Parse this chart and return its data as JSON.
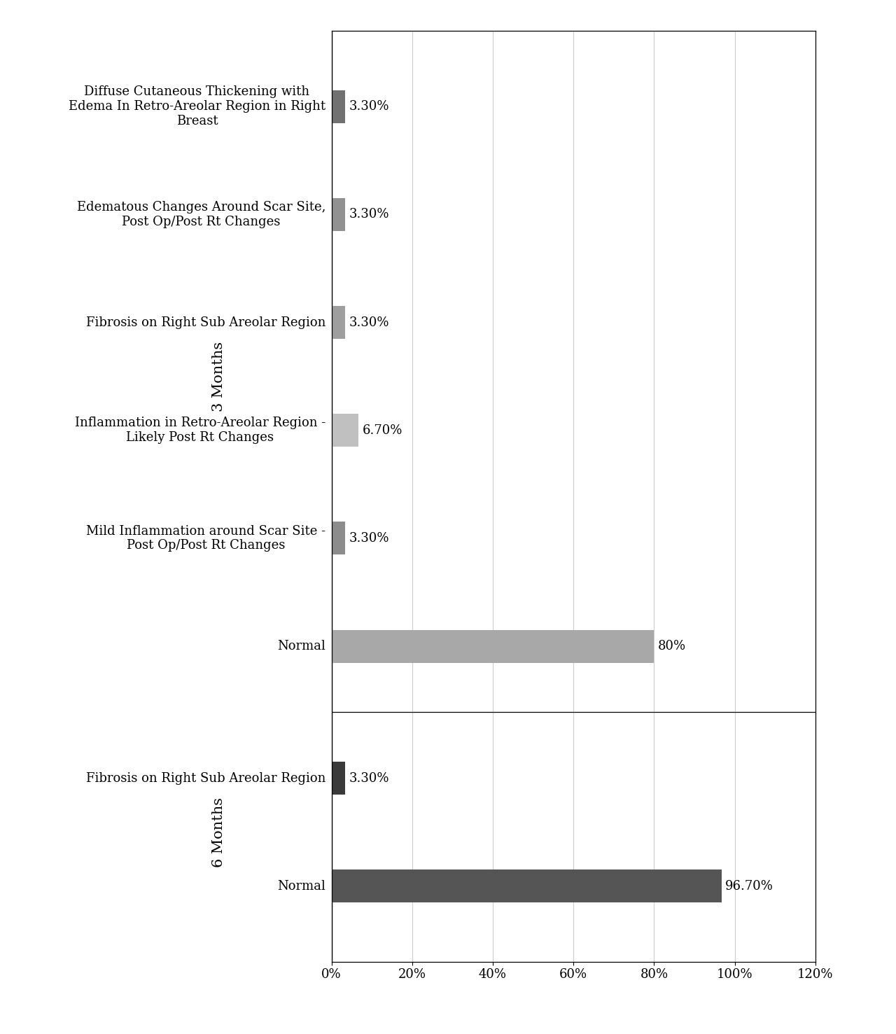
{
  "groups": [
    {
      "label": "3 Months",
      "bars": [
        {
          "label": "Diffuse Cutaneous Thickening with\nEdema In Retro-Areolar Region in Right\nBreast",
          "value": 3.3,
          "color": "#717171"
        },
        {
          "label": "Edematous Changes Around Scar Site,\nPost Op/Post Rt Changes",
          "value": 3.3,
          "color": "#919191"
        },
        {
          "label": "Fibrosis on Right Sub Areolar Region",
          "value": 3.3,
          "color": "#9e9e9e"
        },
        {
          "label": "Inflammation in Retro-Areolar Region -\nLikely Post Rt Changes",
          "value": 6.7,
          "color": "#c0c0c0"
        },
        {
          "label": "Mild Inflammation around Scar Site -\nPost Op/Post Rt Changes",
          "value": 3.3,
          "color": "#8c8c8c"
        },
        {
          "label": "Normal",
          "value": 80.0,
          "color": "#a8a8a8"
        }
      ]
    },
    {
      "label": "6 Months",
      "bars": [
        {
          "label": "Fibrosis on Right Sub Areolar Region",
          "value": 3.3,
          "color": "#3a3a3a"
        },
        {
          "label": "Normal",
          "value": 96.7,
          "color": "#555555"
        }
      ]
    }
  ],
  "xlim": [
    0,
    120
  ],
  "xticks": [
    0,
    20,
    40,
    60,
    80,
    100,
    120
  ],
  "xticklabels": [
    "0%",
    "20%",
    "40%",
    "60%",
    "80%",
    "100%",
    "120%"
  ],
  "bar_height": 0.55,
  "group_label_fontsize": 15,
  "tick_label_fontsize": 13,
  "value_label_fontsize": 13,
  "background_color": "#ffffff",
  "grid_color": "#cccccc"
}
